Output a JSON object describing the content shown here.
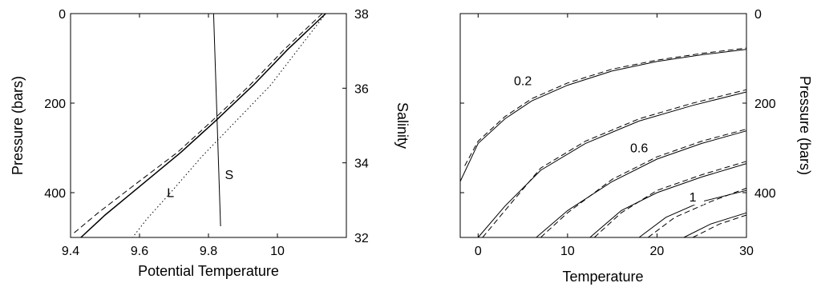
{
  "chart_data": [
    {
      "type": "line",
      "panel": "left",
      "xlabel": "Potential Temperature",
      "ylabel_left": "Pressure (bars)",
      "ylabel_right": "Salinity",
      "xlim": [
        9.4,
        10.2
      ],
      "ylim_left": [
        0,
        500
      ],
      "ylim_left_inverted": true,
      "ylim_right": [
        32,
        38
      ],
      "x_ticks": [
        9.4,
        9.6,
        9.8,
        10
      ],
      "x_tick_labels": [
        "9.4",
        "9.6",
        "9.8",
        "10"
      ],
      "y_left_ticks": [
        0,
        200,
        400
      ],
      "y_left_tick_labels": [
        "0",
        "200",
        "400"
      ],
      "y_right_ticks": [
        32,
        34,
        36,
        38
      ],
      "y_right_tick_labels": [
        "32",
        "34",
        "36",
        "38"
      ],
      "series": [
        {
          "style": "solid",
          "axis": "pressure",
          "points": [
            [
              10.14,
              0
            ],
            [
              10.03,
              80
            ],
            [
              9.93,
              160
            ],
            [
              9.82,
              240
            ],
            [
              9.72,
              310
            ],
            [
              9.61,
              380
            ],
            [
              9.5,
              450
            ],
            [
              9.43,
              500
            ]
          ]
        },
        {
          "style": "dashed",
          "axis": "pressure",
          "points": [
            [
              10.13,
              0
            ],
            [
              10.02,
              80
            ],
            [
              9.92,
              160
            ],
            [
              9.81,
              240
            ],
            [
              9.71,
              310
            ],
            [
              9.59,
              380
            ],
            [
              9.48,
              445
            ],
            [
              9.41,
              490
            ]
          ]
        },
        {
          "style": "dotted",
          "axis": "pressure",
          "points": [
            [
              10.14,
              0
            ],
            [
              10.06,
              80
            ],
            [
              9.98,
              160
            ],
            [
              9.88,
              240
            ],
            [
              9.78,
              320
            ],
            [
              9.69,
              400
            ],
            [
              9.62,
              460
            ],
            [
              9.58,
              500
            ]
          ]
        },
        {
          "style": "solid",
          "axis": "salinity",
          "points": [
            [
              9.815,
              38
            ],
            [
              9.835,
              32.3
            ]
          ]
        }
      ],
      "annotations": [
        {
          "text": "S",
          "x": 9.86,
          "y": 370
        },
        {
          "text": "L",
          "x": 9.69,
          "y": 410
        }
      ]
    },
    {
      "type": "line",
      "panel": "right",
      "xlabel": "Temperature",
      "ylabel": "Pressure (bars)",
      "xlim": [
        -2,
        30
      ],
      "ylim": [
        0,
        500
      ],
      "ylim_inverted": true,
      "x_ticks": [
        0,
        10,
        20,
        30
      ],
      "x_tick_labels": [
        "0",
        "10",
        "20",
        "30"
      ],
      "y_ticks": [
        0,
        200,
        400
      ],
      "y_tick_labels": [
        "0",
        "200",
        "400"
      ],
      "series": [
        {
          "style": "solid",
          "points": [
            [
              -2,
              375
            ],
            [
              0,
              290
            ],
            [
              3,
              235
            ],
            [
              6,
              195
            ],
            [
              10,
              160
            ],
            [
              15,
              128
            ],
            [
              20,
              107
            ],
            [
              25,
              92
            ],
            [
              30,
              80
            ]
          ]
        },
        {
          "style": "dashed",
          "points": [
            [
              -1.5,
              340
            ],
            [
              0,
              285
            ],
            [
              3,
              230
            ],
            [
              6,
              190
            ],
            [
              10,
              155
            ],
            [
              15,
              124
            ],
            [
              20,
              104
            ],
            [
              25,
              89
            ],
            [
              30,
              77
            ]
          ]
        },
        {
          "style": "solid",
          "points": [
            [
              0,
              500
            ],
            [
              3,
              430
            ],
            [
              7,
              350
            ],
            [
              12,
              290
            ],
            [
              18,
              240
            ],
            [
              24,
              205
            ],
            [
              30,
              175
            ]
          ]
        },
        {
          "style": "dashed",
          "points": [
            [
              0.5,
              500
            ],
            [
              3,
              440
            ],
            [
              7,
              345
            ],
            [
              12,
              285
            ],
            [
              18,
              235
            ],
            [
              24,
              200
            ],
            [
              30,
              170
            ]
          ]
        },
        {
          "style": "solid",
          "points": [
            [
              6.5,
              500
            ],
            [
              10,
              440
            ],
            [
              15,
              375
            ],
            [
              20,
              325
            ],
            [
              25,
              290
            ],
            [
              30,
              262
            ]
          ]
        },
        {
          "style": "dashed",
          "points": [
            [
              7,
              500
            ],
            [
              10,
              445
            ],
            [
              15,
              370
            ],
            [
              20,
              320
            ],
            [
              25,
              285
            ],
            [
              30,
              258
            ]
          ]
        },
        {
          "style": "solid",
          "points": [
            [
              12.5,
              500
            ],
            [
              16,
              440
            ],
            [
              20,
              400
            ],
            [
              25,
              365
            ],
            [
              30,
              335
            ]
          ]
        },
        {
          "style": "dashed",
          "points": [
            [
              13,
              500
            ],
            [
              16,
              445
            ],
            [
              20,
              395
            ],
            [
              25,
              360
            ],
            [
              30,
              330
            ]
          ]
        },
        {
          "style": "solid",
          "points": [
            [
              18,
              500
            ],
            [
              21,
              455
            ],
            [
              25,
              420
            ],
            [
              30,
              395
            ]
          ]
        },
        {
          "style": "dashed",
          "points": [
            [
              19,
              500
            ],
            [
              22,
              455
            ],
            [
              26,
              420
            ],
            [
              30,
              390
            ]
          ]
        },
        {
          "style": "solid",
          "points": [
            [
              23,
              500
            ],
            [
              26,
              470
            ],
            [
              30,
              445
            ]
          ]
        },
        {
          "style": "dashed",
          "points": [
            [
              24,
              500
            ],
            [
              27,
              470
            ],
            [
              30,
              450
            ]
          ]
        }
      ],
      "annotations": [
        {
          "text": "0.2",
          "x": 5,
          "y": 160
        },
        {
          "text": "0.6",
          "x": 18,
          "y": 310
        },
        {
          "text": "1",
          "x": 24,
          "y": 420
        }
      ]
    }
  ]
}
